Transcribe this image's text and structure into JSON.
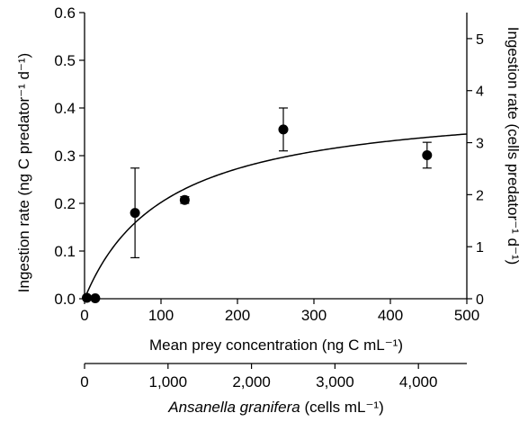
{
  "chart_data": {
    "type": "scatter",
    "x_axis": {
      "label": "Mean prey concentration (ng C mL⁻¹)",
      "range": [
        0,
        500
      ],
      "ticks": [
        0,
        100,
        200,
        300,
        400,
        500
      ]
    },
    "y_left_axis": {
      "label": "Ingestion rate (ng C predator⁻¹ d⁻¹)",
      "range": [
        0,
        0.6
      ],
      "ticks": [
        0.0,
        0.1,
        0.2,
        0.3,
        0.4,
        0.5,
        0.6
      ],
      "tick_labels": [
        "0.0",
        "0.1",
        "0.2",
        "0.3",
        "0.4",
        "0.5",
        "0.6"
      ]
    },
    "y_right_axis": {
      "label": "Ingestion rate (cells predator⁻¹ d⁻¹)",
      "range": [
        0,
        5.5
      ],
      "ticks": [
        0,
        1,
        2,
        3,
        4,
        5
      ]
    },
    "x_secondary_axis": {
      "label_italic": "Ansanella granifera",
      "label_rest": " (cells mL⁻¹)",
      "range": [
        0,
        4580
      ],
      "ticks": [
        0,
        1000,
        2000,
        3000,
        4000
      ],
      "tick_labels": [
        "0",
        "1,000",
        "2,000",
        "3,000",
        "4,000"
      ]
    },
    "points": [
      {
        "x": 3,
        "y": 0.002,
        "err": 0
      },
      {
        "x": 14,
        "y": 0.001,
        "err": 0
      },
      {
        "x": 66,
        "y": 0.18,
        "err": 0.094
      },
      {
        "x": 131,
        "y": 0.207,
        "err": 0.007
      },
      {
        "x": 260,
        "y": 0.355,
        "err": 0.045
      },
      {
        "x": 448,
        "y": 0.301,
        "err": 0.027
      }
    ],
    "fit": {
      "type": "michaelis-menten",
      "vmax": 0.42,
      "k": 108
    },
    "grid": false,
    "legend": "none"
  }
}
